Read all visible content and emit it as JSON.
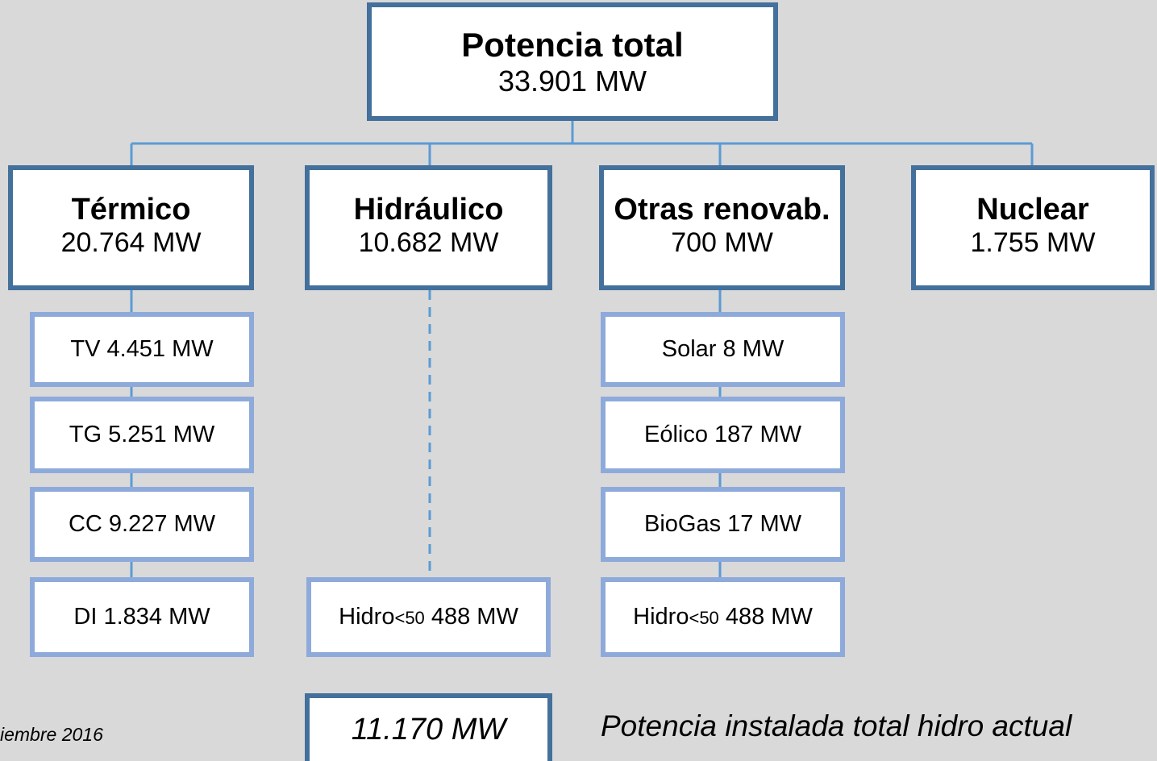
{
  "root": {
    "title": "Potencia total",
    "value": "33.901 MW"
  },
  "groups": [
    {
      "title": "Térmico",
      "value": "20.764 MW",
      "items": [
        "TV 4.451 MW",
        "TG 5.251 MW",
        "CC 9.227 MW",
        "DI 1.834 MW"
      ]
    },
    {
      "title": "Hidráulico",
      "value": "10.682 MW",
      "items": [
        {
          "prefix": "Hidro",
          "small": "<50",
          "rest": "488 MW"
        }
      ]
    },
    {
      "title": "Otras renovab.",
      "value": "700 MW",
      "items": [
        "Solar 8 MW",
        "Eólico 187 MW",
        "BioGas 17 MW",
        {
          "prefix": "Hidro",
          "small": "<50",
          "rest": "488 MW"
        }
      ]
    },
    {
      "title": "Nuclear",
      "value": "1.755 MW",
      "items": []
    }
  ],
  "footer": {
    "date": "iembre 2016",
    "total": "11.170 MW",
    "caption": "Potencia instalada total hidro actual"
  }
}
